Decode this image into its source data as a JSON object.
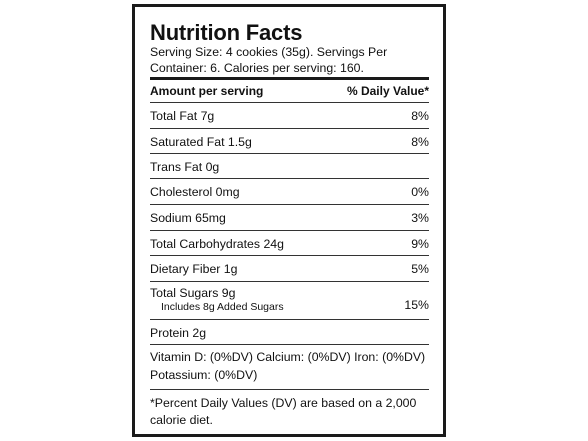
{
  "label": {
    "title": "Nutrition Facts",
    "serving_text": "Serving Size: 4 cookies (35g). Servings Per Container: 6. Calories per serving: 160.",
    "header": {
      "left": "Amount per serving",
      "right": "% Daily Value*"
    },
    "rows": [
      {
        "name": "Total Fat 7g",
        "dv": "8%"
      },
      {
        "name": "Saturated Fat 1.5g",
        "dv": "8%"
      },
      {
        "name": "Trans Fat 0g",
        "dv": ""
      },
      {
        "name": "Cholesterol 0mg",
        "dv": "0%"
      },
      {
        "name": "Sodium 65mg",
        "dv": "3%"
      },
      {
        "name": "Total Carbohydrates 24g",
        "dv": "9%"
      },
      {
        "name": "Dietary Fiber 1g",
        "dv": "5%"
      }
    ],
    "sugars": {
      "name": "Total Sugars 9g",
      "sub": "Includes 8g Added Sugars",
      "dv": "15%"
    },
    "protein": {
      "name": "Protein 2g"
    },
    "vitamins": "Vitamin D: (0%DV) Calcium: (0%DV) Iron: (0%DV) Potassium: (0%DV)",
    "footnote": "*Percent Daily Values (DV) are based on a 2,000 calorie diet."
  }
}
